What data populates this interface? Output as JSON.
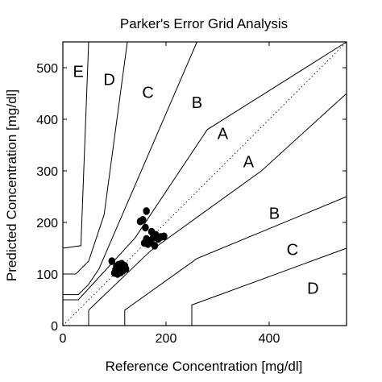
{
  "chart_data": {
    "type": "scatter",
    "title": "Parker's Error Grid Analysis",
    "xlabel": "Reference Concentration [mg/dl]",
    "ylabel": "Predicted Concentration [mg/dl]",
    "xlim": [
      0,
      550
    ],
    "ylim": [
      0,
      550
    ],
    "xticks": [
      0,
      200,
      400
    ],
    "yticks": [
      0,
      100,
      200,
      300,
      400,
      500
    ],
    "identity_line": true,
    "grid": false,
    "zone_labels": [
      {
        "text": "E",
        "x": 30,
        "y": 490
      },
      {
        "text": "D",
        "x": 90,
        "y": 475
      },
      {
        "text": "C",
        "x": 165,
        "y": 450
      },
      {
        "text": "B",
        "x": 260,
        "y": 430
      },
      {
        "text": "A",
        "x": 310,
        "y": 370
      },
      {
        "text": "A",
        "x": 360,
        "y": 315
      },
      {
        "text": "B",
        "x": 410,
        "y": 215
      },
      {
        "text": "C",
        "x": 445,
        "y": 145
      },
      {
        "text": "D",
        "x": 485,
        "y": 70
      }
    ],
    "boundaries": [
      [
        [
          0,
          150
        ],
        [
          35,
          155
        ],
        [
          50,
          550
        ]
      ],
      [
        [
          0,
          100
        ],
        [
          25,
          100
        ],
        [
          50,
          125
        ],
        [
          80,
          215
        ],
        [
          125,
          550
        ]
      ],
      [
        [
          0,
          60
        ],
        [
          30,
          60
        ],
        [
          50,
          80
        ],
        [
          70,
          110
        ],
        [
          260,
          550
        ]
      ],
      [
        [
          0,
          50
        ],
        [
          30,
          50
        ],
        [
          140,
          170
        ],
        [
          280,
          380
        ],
        [
          550,
          550
        ]
      ],
      [
        [
          50,
          0
        ],
        [
          50,
          30
        ],
        [
          170,
          145
        ],
        [
          385,
          300
        ],
        [
          550,
          450
        ]
      ],
      [
        [
          120,
          0
        ],
        [
          120,
          30
        ],
        [
          260,
          130
        ],
        [
          550,
          250
        ]
      ],
      [
        [
          250,
          0
        ],
        [
          250,
          40
        ],
        [
          550,
          150
        ]
      ]
    ],
    "points": [
      [
        95,
        125
      ],
      [
        100,
        102
      ],
      [
        102,
        108
      ],
      [
        104,
        115
      ],
      [
        106,
        100
      ],
      [
        108,
        118
      ],
      [
        110,
        104
      ],
      [
        112,
        110
      ],
      [
        114,
        120
      ],
      [
        116,
        106
      ],
      [
        118,
        113
      ],
      [
        120,
        116
      ],
      [
        122,
        110
      ],
      [
        105,
        112
      ],
      [
        112,
        103
      ],
      [
        150,
        202
      ],
      [
        155,
        205
      ],
      [
        160,
        190
      ],
      [
        162,
        222
      ],
      [
        158,
        160
      ],
      [
        162,
        168
      ],
      [
        165,
        158
      ],
      [
        170,
        165
      ],
      [
        172,
        182
      ],
      [
        175,
        170
      ],
      [
        178,
        155
      ],
      [
        180,
        176
      ],
      [
        185,
        168
      ],
      [
        190,
        172
      ],
      [
        196,
        173
      ],
      [
        168,
        160
      ]
    ]
  }
}
